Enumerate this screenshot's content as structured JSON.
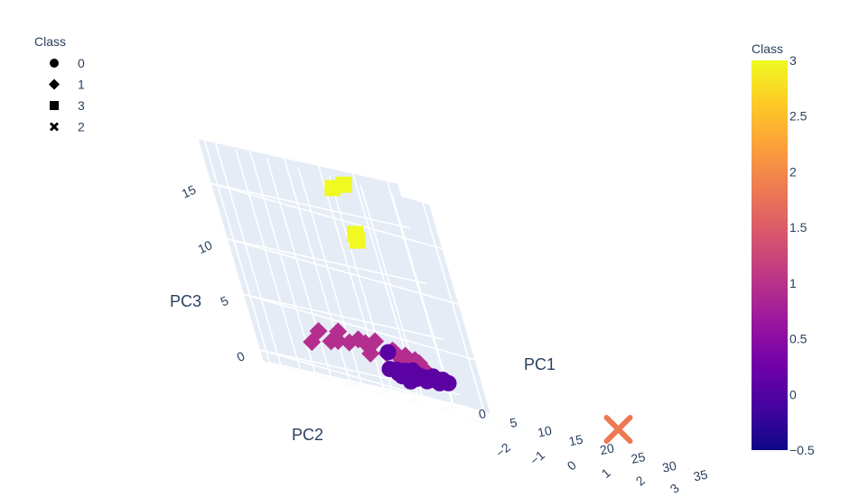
{
  "legend": {
    "title": "Class",
    "items": [
      {
        "label": "0",
        "symbol": "circle"
      },
      {
        "label": "1",
        "symbol": "diamond"
      },
      {
        "label": "3",
        "symbol": "square"
      },
      {
        "label": "2",
        "symbol": "x"
      }
    ]
  },
  "colorbar": {
    "title": "Class",
    "ticks": [
      "3",
      "2.5",
      "2",
      "1.5",
      "1",
      "0.5",
      "0",
      "−0.5"
    ],
    "range": [
      -0.5,
      3
    ],
    "colorscale": [
      "#0d0887",
      "#46039f",
      "#7201a8",
      "#9c179e",
      "#bd3786",
      "#d8576b",
      "#ed7953",
      "#fb9f3a",
      "#fdca26",
      "#f0f921"
    ]
  },
  "axes": {
    "pc1": {
      "title": "PC1",
      "ticks": [
        "0",
        "5",
        "10",
        "15",
        "20",
        "25",
        "30",
        "35"
      ]
    },
    "pc2": {
      "title": "PC2",
      "ticks": [
        "−2",
        "−1",
        "0",
        "1",
        "2",
        "3"
      ]
    },
    "pc3": {
      "title": "PC3",
      "ticks": [
        "0",
        "5",
        "10",
        "15"
      ]
    }
  },
  "colors": {
    "scene_bg": "#e5ecf6",
    "grid": "#ffffff",
    "class0": "#5b02a3",
    "class1": "#b42e8f",
    "class2": "#ed7953",
    "class3": "#f0f921"
  },
  "chart_data": {
    "type": "scatter",
    "xlabel": "PC1",
    "ylabel": "PC2",
    "zlabel": "PC3",
    "xlim": [
      -1,
      36
    ],
    "ylim": [
      -2.5,
      3.3
    ],
    "zlim": [
      -1,
      19
    ],
    "grid": true,
    "legend_position": "top-left",
    "series": [
      {
        "name": "0",
        "symbol": "circle",
        "color_value": 0,
        "x": [
          0.2,
          0.7,
          1.1,
          1.4,
          1.8,
          2.2,
          2.6,
          2.9,
          3.3,
          0.9,
          1.6,
          2.4,
          3.0,
          0.5,
          1.3,
          2.0,
          0.8,
          1.7
        ],
        "y": [
          1.15,
          1.3,
          1.45,
          1.55,
          1.7,
          1.85,
          2.0,
          2.1,
          2.3,
          1.35,
          1.6,
          1.95,
          2.2,
          1.2,
          1.5,
          1.8,
          1.25,
          1.65
        ],
        "z": [
          1.0,
          0.8,
          1.2,
          0.9,
          1.1,
          0.7,
          1.3,
          0.8,
          1.0,
          0.6,
          1.4,
          0.9,
          1.2,
          2.6,
          0.3,
          1.0,
          1.1,
          0.7
        ]
      },
      {
        "name": "1",
        "symbol": "diamond",
        "color_value": 1,
        "x": [
          2.0,
          2.3,
          2.6,
          2.9,
          3.2,
          3.5,
          3.8,
          4.1,
          4.4,
          4.7,
          5.0,
          5.3,
          5.6,
          5.9,
          6.2,
          6.5,
          3.0,
          4.0,
          5.0,
          6.0
        ],
        "y": [
          -1.35,
          -1.1,
          -0.85,
          -0.6,
          -0.4,
          -0.15,
          0.05,
          0.25,
          0.45,
          0.6,
          0.75,
          0.85,
          0.95,
          1.0,
          1.05,
          1.1,
          -0.7,
          -0.05,
          0.6,
          0.95
        ],
        "z": [
          2.0,
          3.2,
          2.5,
          3.6,
          2.8,
          3.3,
          2.2,
          3.5,
          2.6,
          3.0,
          2.3,
          2.8,
          2.1,
          2.6,
          2.4,
          1.9,
          2.7,
          3.1,
          2.9,
          2.2
        ]
      },
      {
        "name": "3",
        "symbol": "square",
        "color_value": 3,
        "x": [
          0.5,
          -0.5,
          0.8,
          0.3
        ],
        "y": [
          1.35,
          1.15,
          1.2,
          1.3
        ],
        "z": [
          17.8,
          17.2,
          13.3,
          12.7
        ]
      },
      {
        "name": "2",
        "symbol": "x",
        "color_value": 2,
        "x": [
          34.0
        ],
        "y": [
          1.7
        ],
        "z": [
          1.3
        ]
      }
    ]
  }
}
